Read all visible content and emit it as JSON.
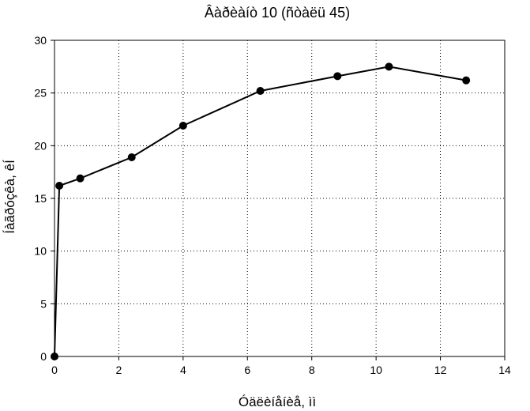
{
  "chart_data": {
    "type": "line",
    "title": "Âàðèàíò 10 (ñòàëü 45)",
    "xlabel": "Óäëèíåíèå, ìì",
    "ylabel": "Íàãðóçêà, êÍ",
    "xlim": [
      0,
      14
    ],
    "ylim": [
      0,
      30
    ],
    "xticks": [
      "0",
      "2",
      "4",
      "6",
      "8",
      "10",
      "12",
      "14"
    ],
    "yticks": [
      "0",
      "5",
      "10",
      "15",
      "20",
      "25",
      "30"
    ],
    "grid": true,
    "legend": "none",
    "series": [
      {
        "x": [
          0.0,
          0.15,
          0.8,
          2.4,
          4.0,
          6.4,
          8.8,
          10.4,
          12.8
        ],
        "y": [
          0.0,
          16.2,
          16.9,
          18.9,
          21.9,
          25.2,
          26.6,
          27.5,
          26.2
        ]
      }
    ],
    "colors": {
      "line": "#000000",
      "marker": "#000000",
      "grid": "#000000",
      "axes": "#000000"
    }
  }
}
